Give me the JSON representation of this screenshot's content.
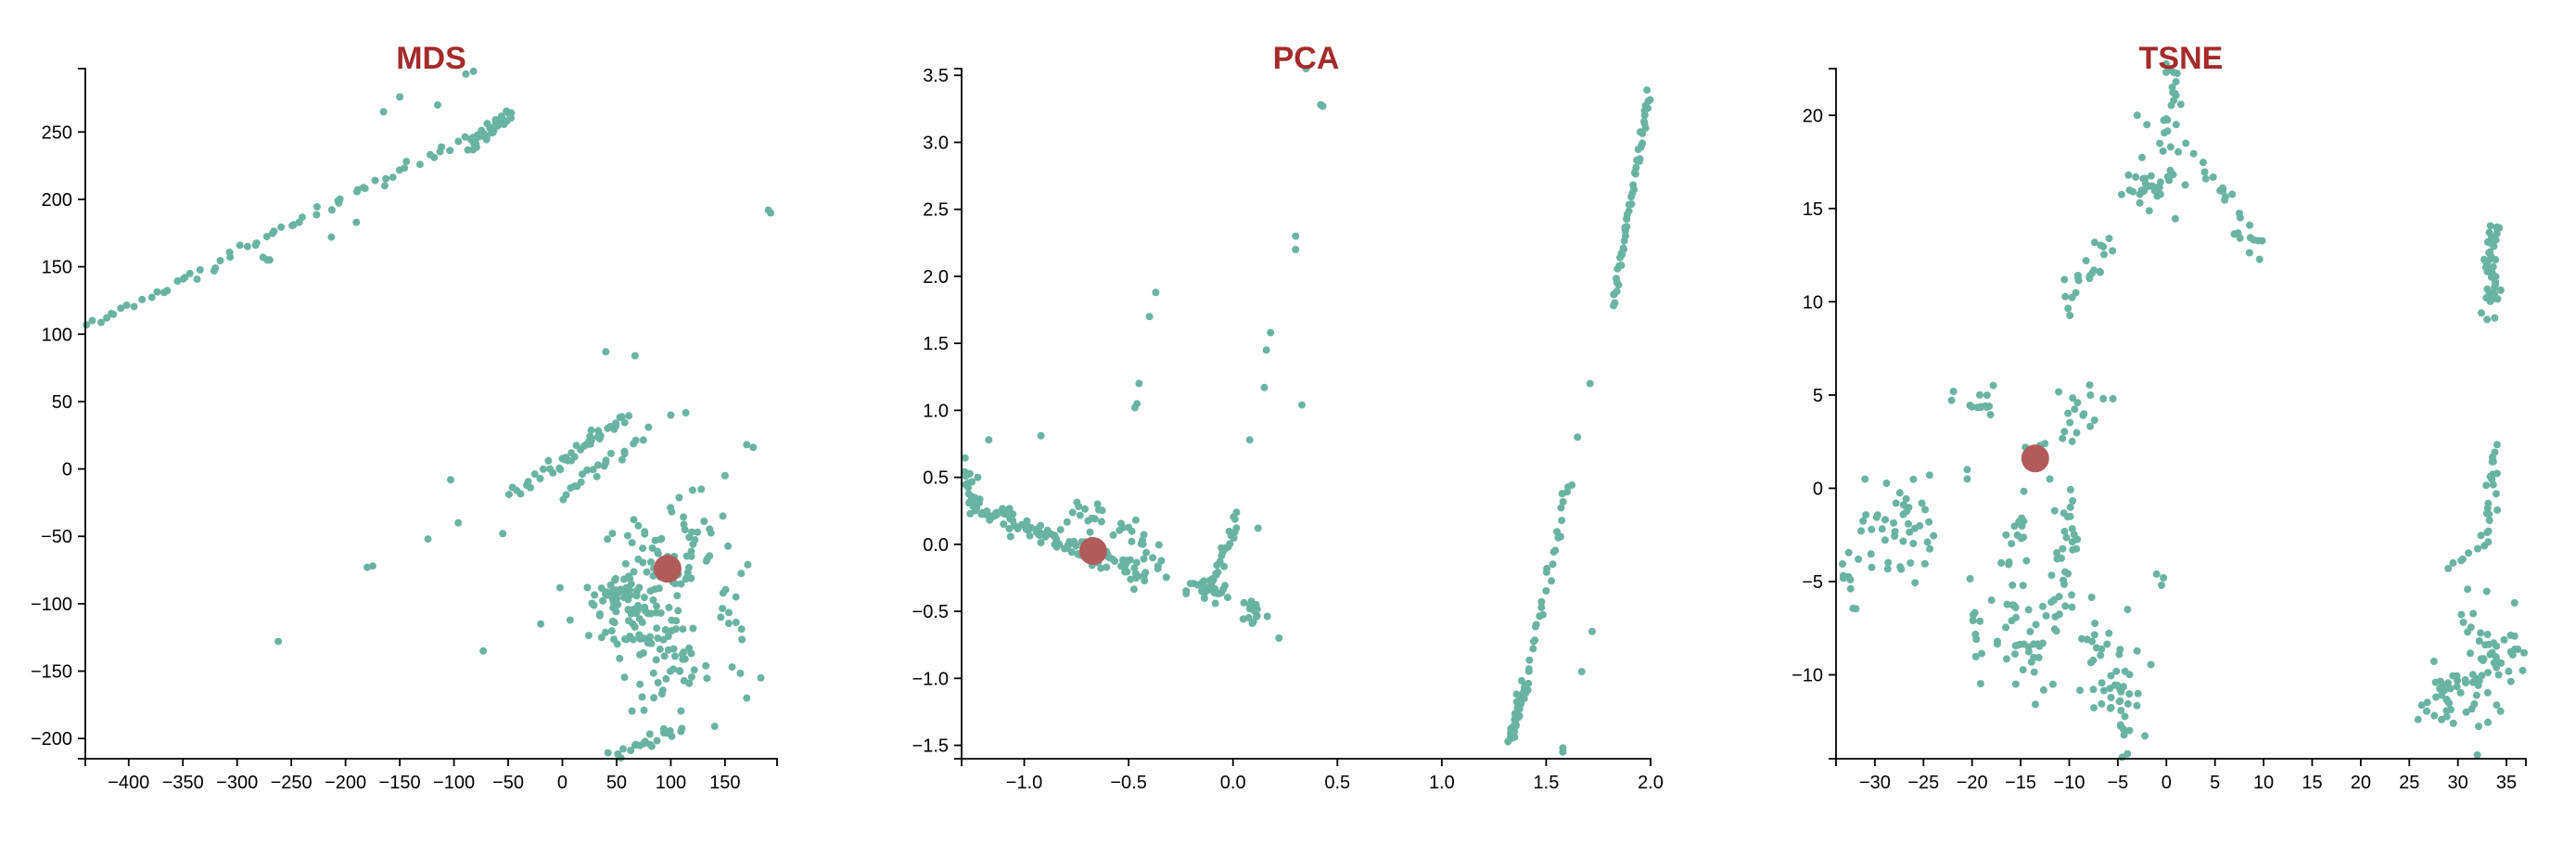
{
  "colors": {
    "point": "#69b3a2",
    "highlight": "#b25b5b",
    "title": "#a52a2a"
  },
  "chart_data": [
    {
      "type": "scatter",
      "title": "MDS",
      "xlabel": "",
      "ylabel": "",
      "xlim": [
        -440,
        198
      ],
      "ylim": [
        -215,
        297
      ],
      "xticks": [
        -400,
        -350,
        -300,
        -250,
        -200,
        -150,
        -100,
        -50,
        0,
        50,
        100,
        150
      ],
      "yticks": [
        -200,
        -150,
        -100,
        -50,
        0,
        50,
        100,
        150,
        200,
        250
      ],
      "xtick_labels": [
        "−400",
        "−350",
        "−300",
        "−250",
        "−200",
        "−150",
        "−100",
        "−50",
        "0",
        "50",
        "100",
        "150"
      ],
      "ytick_labels": [
        "−200",
        "−150",
        "−100",
        "−50",
        "0",
        "50",
        "100",
        "150",
        "200",
        "250"
      ],
      "highlight": {
        "x": 97,
        "y": -74
      },
      "clusters": [
        {
          "kind": "line",
          "from": [
            -438,
            105
          ],
          "to": [
            -47,
            262
          ],
          "n": 70,
          "jitter": [
            3,
            2
          ]
        },
        {
          "kind": "line",
          "from": [
            -86,
            238
          ],
          "to": [
            -48,
            262
          ],
          "n": 30,
          "jitter": [
            2,
            2
          ]
        },
        {
          "kind": "line",
          "from": [
            -50,
            -20
          ],
          "to": [
            60,
            40
          ],
          "n": 30,
          "jitter": [
            3,
            3
          ]
        },
        {
          "kind": "line",
          "from": [
            -10,
            0
          ],
          "to": [
            50,
            35
          ],
          "n": 16,
          "jitter": [
            3,
            3
          ]
        },
        {
          "kind": "line",
          "from": [
            0,
            -20
          ],
          "to": [
            75,
            25
          ],
          "n": 22,
          "jitter": [
            3,
            4
          ]
        },
        {
          "kind": "blob",
          "center": [
            50,
            -95
          ],
          "spread": [
            15,
            6
          ],
          "n": 40
        },
        {
          "kind": "blob",
          "center": [
            65,
            -115
          ],
          "spread": [
            20,
            12
          ],
          "n": 40
        },
        {
          "kind": "blob",
          "center": [
            80,
            -80
          ],
          "spread": [
            22,
            22
          ],
          "n": 60
        },
        {
          "kind": "blob",
          "center": [
            100,
            -150
          ],
          "spread": [
            18,
            16
          ],
          "n": 40
        },
        {
          "kind": "blob",
          "center": [
            120,
            -50
          ],
          "spread": [
            14,
            28
          ],
          "n": 25
        },
        {
          "kind": "blob",
          "center": [
            155,
            -110
          ],
          "spread": [
            10,
            25
          ],
          "n": 14
        },
        {
          "kind": "line",
          "from": [
            45,
            -215
          ],
          "to": [
            110,
            -193
          ],
          "n": 22,
          "jitter": [
            3,
            3
          ]
        }
      ],
      "points": [
        [
          -82,
          295
        ],
        [
          -89,
          293
        ],
        [
          -150,
          276
        ],
        [
          -165,
          265
        ],
        [
          -115,
          270
        ],
        [
          -272,
          155
        ],
        [
          -276,
          157
        ],
        [
          -270,
          155
        ],
        [
          -213,
          172
        ],
        [
          -190,
          183
        ],
        [
          190,
          192
        ],
        [
          192,
          190
        ],
        [
          40,
          87
        ],
        [
          67,
          84
        ],
        [
          100,
          40
        ],
        [
          170,
          18
        ],
        [
          176,
          16
        ],
        [
          -103,
          -8
        ],
        [
          -96,
          -40
        ],
        [
          -124,
          -52
        ],
        [
          -175,
          -72
        ],
        [
          -180,
          -73
        ],
        [
          -55,
          -48
        ],
        [
          -20,
          -115
        ],
        [
          -73,
          -135
        ],
        [
          -262,
          -128
        ],
        [
          170,
          -170
        ],
        [
          183,
          -155
        ],
        [
          150,
          -5
        ],
        [
          148,
          -35
        ],
        [
          160,
          -95
        ],
        [
          128,
          -15
        ]
      ]
    },
    {
      "type": "scatter",
      "title": "PCA",
      "xlabel": "",
      "ylabel": "",
      "xlim": [
        -1.3,
        2.0
      ],
      "ylim": [
        -1.6,
        3.55
      ],
      "xticks": [
        -1.0,
        -0.5,
        0.0,
        0.5,
        1.0,
        1.5,
        2.0
      ],
      "yticks": [
        -1.5,
        -1.0,
        -0.5,
        0.0,
        0.5,
        1.0,
        1.5,
        2.0,
        2.5,
        3.0,
        3.5
      ],
      "xtick_labels": [
        "−1.0",
        "−0.5",
        "0.0",
        "0.5",
        "1.0",
        "1.5",
        "2.0"
      ],
      "ytick_labels": [
        "−1.5",
        "−1.0",
        "−0.5",
        "0.0",
        "0.5",
        "1.0",
        "1.5",
        "2.0",
        "2.5",
        "3.0",
        "3.5"
      ],
      "highlight": {
        "x": -0.67,
        "y": -0.05
      },
      "clusters": [
        {
          "kind": "line",
          "from": [
            -1.27,
            0.3
          ],
          "to": [
            -0.42,
            -0.22
          ],
          "n": 120,
          "jitter": [
            0.02,
            0.035
          ]
        },
        {
          "kind": "blob",
          "center": [
            -1.27,
            0.42
          ],
          "spread": [
            0.015,
            0.1
          ],
          "n": 14
        },
        {
          "kind": "line",
          "from": [
            -0.8,
            0.25
          ],
          "to": [
            -0.5,
            0.15
          ],
          "n": 20,
          "jitter": [
            0.05,
            0.06
          ]
        },
        {
          "kind": "line",
          "from": [
            -0.5,
            0.1
          ],
          "to": [
            -0.33,
            -0.2
          ],
          "n": 14,
          "jitter": [
            0.02,
            0.04
          ]
        },
        {
          "kind": "blob",
          "center": [
            -0.12,
            -0.35
          ],
          "spread": [
            0.05,
            0.05
          ],
          "n": 30
        },
        {
          "kind": "line",
          "from": [
            -0.1,
            -0.3
          ],
          "to": [
            0.02,
            0.2
          ],
          "n": 24,
          "jitter": [
            0.012,
            0.04
          ]
        },
        {
          "kind": "blob",
          "center": [
            0.1,
            -0.5
          ],
          "spread": [
            0.03,
            0.06
          ],
          "n": 16
        },
        {
          "kind": "line",
          "from": [
            1.33,
            -1.45
          ],
          "to": [
            1.4,
            -1.05
          ],
          "n": 45,
          "jitter": [
            0.01,
            0.02
          ]
        },
        {
          "kind": "line",
          "from": [
            1.4,
            -1.0
          ],
          "to": [
            1.62,
            0.5
          ],
          "n": 30,
          "jitter": [
            0.008,
            0.03
          ]
        },
        {
          "kind": "line",
          "from": [
            1.82,
            1.8
          ],
          "to": [
            1.99,
            3.36
          ],
          "n": 55,
          "jitter": [
            0.006,
            0.02
          ]
        }
      ],
      "points": [
        [
          -1.17,
          0.78
        ],
        [
          -0.92,
          0.81
        ],
        [
          -0.37,
          1.88
        ],
        [
          -0.4,
          1.7
        ],
        [
          -0.45,
          1.2
        ],
        [
          -0.47,
          1.02
        ],
        [
          -0.46,
          1.05
        ],
        [
          0.18,
          1.58
        ],
        [
          0.16,
          1.45
        ],
        [
          0.15,
          1.17
        ],
        [
          0.08,
          0.78
        ],
        [
          0.12,
          0.12
        ],
        [
          0.22,
          -0.7
        ],
        [
          0.3,
          2.3
        ],
        [
          0.3,
          2.2
        ],
        [
          0.33,
          1.04
        ],
        [
          0.35,
          3.55
        ],
        [
          0.43,
          3.27
        ],
        [
          0.42,
          3.28
        ],
        [
          1.65,
          0.8
        ],
        [
          1.71,
          1.2
        ],
        [
          1.72,
          -0.65
        ],
        [
          1.67,
          -0.95
        ],
        [
          1.58,
          -1.52
        ],
        [
          1.58,
          -1.55
        ]
      ]
    },
    {
      "type": "scatter",
      "title": "TSNE",
      "xlabel": "",
      "ylabel": "",
      "xlim": [
        -34,
        37
      ],
      "ylim": [
        -14.5,
        22.5
      ],
      "xticks": [
        -30,
        -25,
        -20,
        -15,
        -10,
        -5,
        0,
        5,
        10,
        15,
        20,
        25,
        30,
        35
      ],
      "yticks": [
        -10,
        -5,
        0,
        5,
        10,
        15,
        20
      ],
      "xtick_labels": [
        "−30",
        "−25",
        "−20",
        "−15",
        "−10",
        "−5",
        "0",
        "5",
        "10",
        "15",
        "20",
        "25",
        "30",
        "35"
      ],
      "ytick_labels": [
        "−10",
        "−5",
        "0",
        "5",
        "10",
        "15",
        "20"
      ],
      "highlight": {
        "x": -13.5,
        "y": 1.6
      },
      "clusters": [
        {
          "kind": "blob",
          "center": [
            -33,
            -4.8
          ],
          "spread": [
            0.7,
            0.9
          ],
          "n": 10
        },
        {
          "kind": "blob",
          "center": [
            -28.5,
            -2.2
          ],
          "spread": [
            1.5,
            1.4
          ],
          "n": 30
        },
        {
          "kind": "blob",
          "center": [
            -25.5,
            -1.5
          ],
          "spread": [
            0.8,
            1.6
          ],
          "n": 14
        },
        {
          "kind": "blob",
          "center": [
            -19.5,
            4.5
          ],
          "spread": [
            1.2,
            0.5
          ],
          "n": 14
        },
        {
          "kind": "line",
          "from": [
            -15,
            -1
          ],
          "to": [
            -16,
            -10
          ],
          "n": 30,
          "jitter": [
            0.7,
            0.8
          ]
        },
        {
          "kind": "line",
          "from": [
            -20,
            -6
          ],
          "to": [
            -19,
            -10
          ],
          "n": 10,
          "jitter": [
            0.3,
            0.6
          ]
        },
        {
          "kind": "blob",
          "center": [
            -13.5,
            -9
          ],
          "spread": [
            0.8,
            1.6
          ],
          "n": 18
        },
        {
          "kind": "line",
          "from": [
            -9.5,
            -0.5
          ],
          "to": [
            -11.5,
            -7.5
          ],
          "n": 34,
          "jitter": [
            0.6,
            0.6
          ]
        },
        {
          "kind": "blob",
          "center": [
            -9,
            4.2
          ],
          "spread": [
            1.1,
            0.8
          ],
          "n": 16
        },
        {
          "kind": "blob",
          "center": [
            -5,
            -11.5
          ],
          "spread": [
            1.3,
            1.7
          ],
          "n": 40
        },
        {
          "kind": "blob",
          "center": [
            -7,
            -8
          ],
          "spread": [
            1,
            1.2
          ],
          "n": 14
        },
        {
          "kind": "line",
          "from": [
            -10.5,
            9.5
          ],
          "to": [
            -6,
            13.5
          ],
          "n": 22,
          "jitter": [
            0.4,
            0.5
          ]
        },
        {
          "kind": "blob",
          "center": [
            -1.5,
            16
          ],
          "spread": [
            1.4,
            0.5
          ],
          "n": 22
        },
        {
          "kind": "blob",
          "center": [
            0.8,
            21.5
          ],
          "spread": [
            0.6,
            0.6
          ],
          "n": 14
        },
        {
          "kind": "blob",
          "center": [
            0.5,
            17.5
          ],
          "spread": [
            0.8,
            1.5
          ],
          "n": 16
        },
        {
          "kind": "line",
          "from": [
            3.5,
            17.5
          ],
          "to": [
            10,
            12.5
          ],
          "n": 24,
          "jitter": [
            0.35,
            0.35
          ]
        },
        {
          "kind": "line",
          "from": [
            33.5,
            14
          ],
          "to": [
            33.5,
            9.5
          ],
          "n": 44,
          "jitter": [
            0.45,
            0.4
          ]
        },
        {
          "kind": "line",
          "from": [
            34,
            2
          ],
          "to": [
            32.5,
            -3
          ],
          "n": 24,
          "jitter": [
            0.35,
            0.4
          ]
        },
        {
          "kind": "blob",
          "center": [
            29.5,
            -11.3
          ],
          "spread": [
            1.8,
            0.9
          ],
          "n": 42
        },
        {
          "kind": "blob",
          "center": [
            34,
            -9
          ],
          "spread": [
            1.6,
            1.1
          ],
          "n": 34
        },
        {
          "kind": "blob",
          "center": [
            31.5,
            -7
          ],
          "spread": [
            1,
            1.3
          ],
          "n": 12
        }
      ],
      "points": [
        [
          -20.5,
          1.0
        ],
        [
          -20.5,
          0.5
        ],
        [
          -14.5,
          2.2
        ],
        [
          -13,
          2.3
        ],
        [
          -12.5,
          2.4
        ],
        [
          -12,
          0.5
        ],
        [
          -11.5,
          -1.2
        ],
        [
          -6.5,
          4.8
        ],
        [
          -5.5,
          4.8
        ],
        [
          -1,
          -4.6
        ],
        [
          -0.5,
          -5.2
        ],
        [
          -0.3,
          -4.8
        ],
        [
          -4,
          -6.5
        ],
        [
          2,
          18.5
        ],
        [
          1,
          19.5
        ],
        [
          -2,
          19.5
        ],
        [
          -3,
          20
        ],
        [
          32,
          -14.3
        ],
        [
          29,
          -4.3
        ],
        [
          29.5,
          -4
        ],
        [
          30.5,
          -3.8
        ],
        [
          -18,
          -6
        ],
        [
          -16.5,
          -2.5
        ],
        [
          -17,
          -4
        ],
        [
          -15.5,
          -10.5
        ]
      ]
    }
  ]
}
